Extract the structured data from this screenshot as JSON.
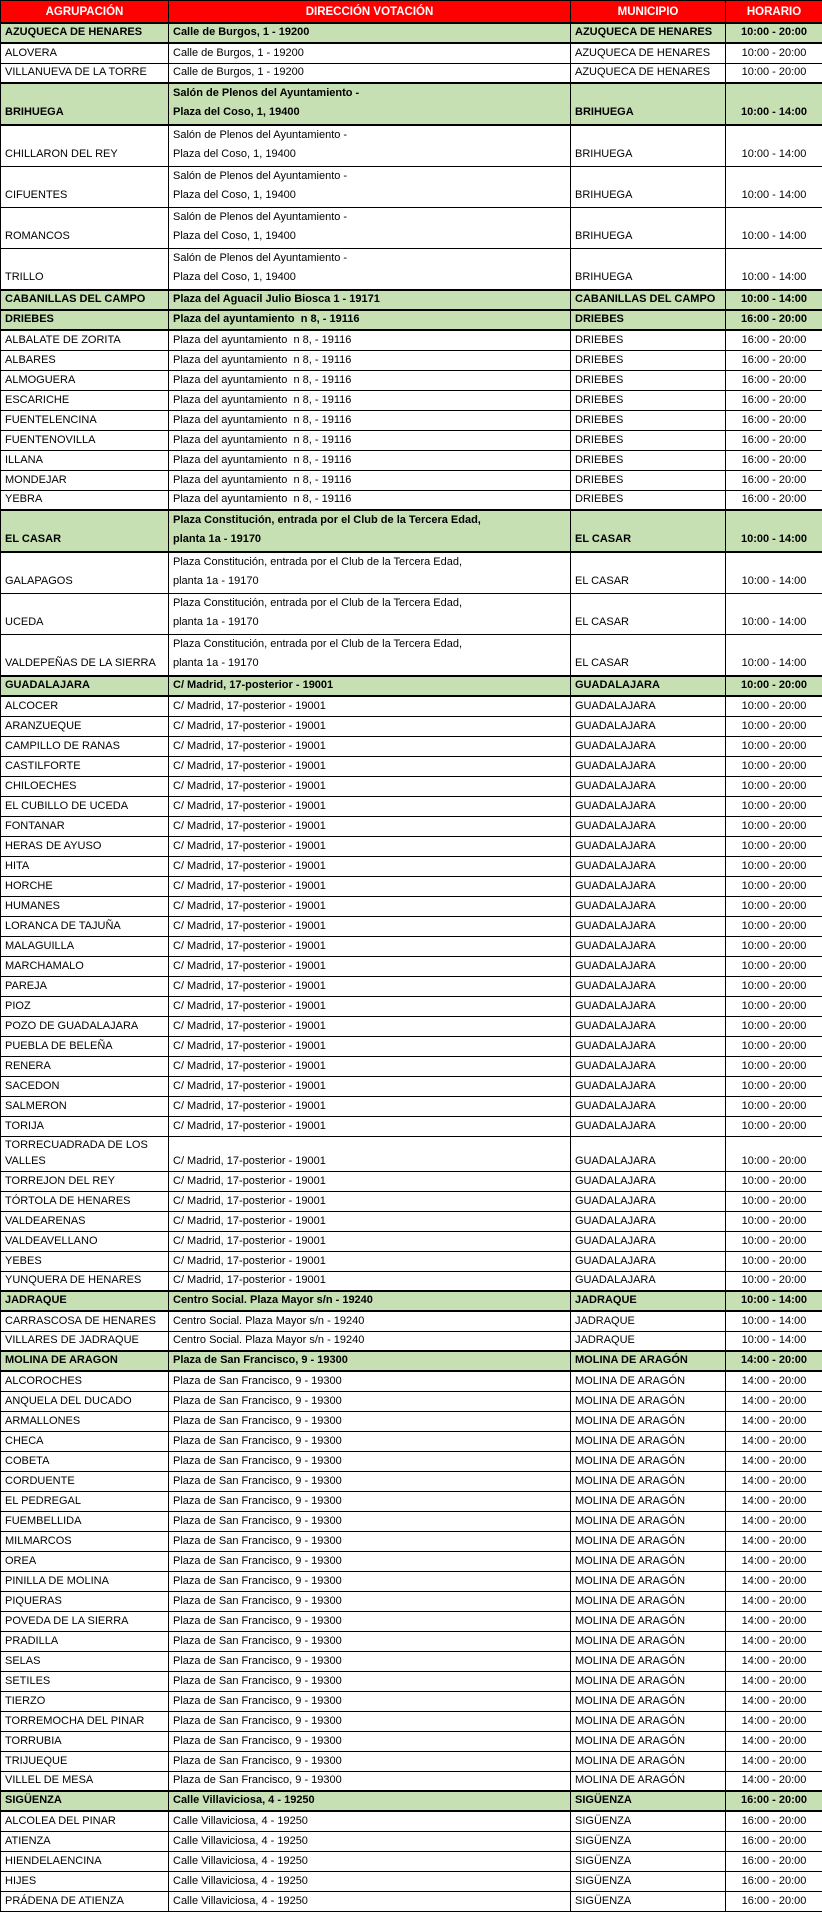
{
  "colors": {
    "header_bg": "#FF0000",
    "header_fg": "#FFFFFF",
    "group_row_bg": "#C6E0B4",
    "border": "#000000"
  },
  "columns": [
    "AGRUPACIÓN",
    "DIRECCIÓN VOTACIÓN",
    "MUNICIPIO",
    "HORARIO"
  ],
  "sections": [
    {
      "agrupacion": "AZUQUECA DE HENARES",
      "direccion": "Calle de Burgos, 1 - 19200",
      "municipio": "AZUQUECA DE HENARES",
      "horario": "10:00 - 20:00",
      "members": [
        "ALOVERA",
        "VILLANUEVA DE LA TORRE"
      ]
    },
    {
      "agrupacion": "BRIHUEGA",
      "direccion": "Salón de Plenos del Ayuntamiento -\nPlaza del Coso, 1, 19400",
      "municipio": "BRIHUEGA",
      "horario": "10:00 - 14:00",
      "members": [
        "CHILLARON DEL REY",
        "CIFUENTES",
        "ROMANCOS",
        "TRILLO"
      ]
    },
    {
      "agrupacion": "CABANILLAS DEL CAMPO",
      "direccion": "Plaza del Aguacil Julio Biosca 1 - 19171",
      "municipio": "CABANILLAS DEL CAMPO",
      "horario": "10:00 - 14:00",
      "members": []
    },
    {
      "agrupacion": "DRIEBES",
      "direccion": "Plaza del ayuntamiento  n 8, - 19116",
      "municipio": "DRIEBES",
      "horario": "16:00 - 20:00",
      "members": [
        "ALBALATE DE ZORITA",
        "ALBARES",
        "ALMOGUERA",
        "ESCARICHE",
        "FUENTELENCINA",
        "FUENTENOVILLA",
        "ILLANA",
        "MONDEJAR",
        "YEBRA"
      ]
    },
    {
      "agrupacion": "EL CASAR",
      "direccion": "Plaza Constitución, entrada por el Club de la Tercera Edad,\nplanta 1a - 19170",
      "municipio": "EL CASAR",
      "horario": "10:00 - 14:00",
      "members": [
        "GALAPAGOS",
        "UCEDA",
        "VALDEPEÑAS DE LA SIERRA"
      ]
    },
    {
      "agrupacion": "GUADALAJARA",
      "direccion": "C/ Madrid, 17-posterior - 19001",
      "municipio": "GUADALAJARA",
      "horario": "10:00 - 20:00",
      "members": [
        "ALCOCER",
        "ARANZUEQUE",
        "CAMPILLO DE RANAS",
        "CASTILFORTE",
        "CHILOECHES",
        "EL CUBILLO DE UCEDA",
        "FONTANAR",
        "HERAS DE AYUSO",
        "HITA",
        "HORCHE",
        "HUMANES",
        "LORANCA DE TAJUÑA",
        "MALAGUILLA",
        "MARCHAMALO",
        "PAREJA",
        "PIOZ",
        "POZO DE GUADALAJARA",
        "PUEBLA DE BELEÑA",
        "RENERA",
        "SACEDON",
        "SALMERON",
        "TORIJA",
        "TORRECUADRADA DE LOS VALLES",
        "TORREJON DEL REY",
        "TÓRTOLA DE HENARES",
        "VALDEARENAS",
        "VALDEAVELLANO",
        "YEBES",
        "YUNQUERA DE HENARES"
      ]
    },
    {
      "agrupacion": "JADRAQUE",
      "direccion": "Centro Social. Plaza Mayor s/n - 19240",
      "municipio": "JADRAQUE",
      "horario": "10:00 - 14:00",
      "members": [
        "CARRASCOSA DE HENARES",
        "VILLARES DE JADRAQUE"
      ]
    },
    {
      "agrupacion": "MOLINA DE ARAGON",
      "direccion": "Plaza de San Francisco, 9 - 19300",
      "municipio": "MOLINA DE ARAGÓN",
      "horario": "14:00 - 20:00",
      "members": [
        "ALCOROCHES",
        "ANQUELA DEL DUCADO",
        "ARMALLONES",
        "CHECA",
        "COBETA",
        "CORDUENTE",
        "EL PEDREGAL",
        "FUEMBELLIDA",
        "MILMARCOS",
        "OREA",
        "PINILLA DE MOLINA",
        "PIQUERAS",
        "POVEDA DE LA SIERRA",
        "PRADILLA",
        "SELAS",
        "SETILES",
        "TIERZO",
        "TORREMOCHA DEL PINAR",
        "TORRUBIA",
        "TRIJUEQUE",
        "VILLEL DE MESA"
      ]
    },
    {
      "agrupacion": "SIGÜENZA",
      "direccion": "Calle Villaviciosa, 4 - 19250",
      "municipio": "SIGÜENZA",
      "horario": "16:00 - 20:00",
      "members": [
        "ALCOLEA DEL PINAR",
        "ATIENZA",
        "HIENDELAENCINA",
        "HIJES",
        "PRÁDENA DE ATIENZA"
      ]
    }
  ]
}
